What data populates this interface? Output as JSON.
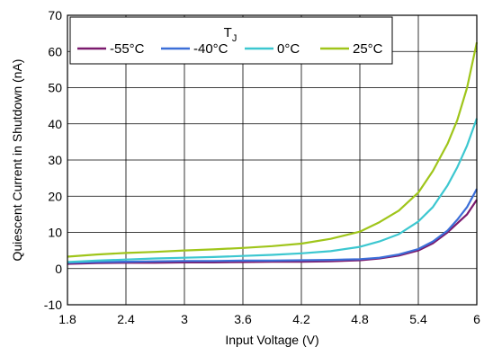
{
  "chart_data": {
    "type": "line",
    "title": "",
    "xlabel": "Input Voltage (V)",
    "ylabel": "Quiescent Current in Shutdown (nA)",
    "xlim": [
      1.8,
      6
    ],
    "ylim": [
      -10,
      70
    ],
    "xticks": [
      1.8,
      2.4,
      3,
      3.6,
      4.2,
      4.8,
      5.4,
      6
    ],
    "xtick_labels": [
      "1.8",
      "2.4",
      "3",
      "3.6",
      "4.2",
      "4.8",
      "5.4",
      "6"
    ],
    "yticks": [
      -10,
      0,
      10,
      20,
      30,
      40,
      50,
      60,
      70
    ],
    "ytick_labels": [
      "-10",
      "0",
      "10",
      "20",
      "30",
      "40",
      "50",
      "60",
      "70"
    ],
    "grid": true,
    "legend": {
      "placement": "top-left",
      "title_main": "T",
      "title_sub": "J"
    },
    "series": [
      {
        "name": "-55°C",
        "color": "#7b1a6e",
        "points": [
          [
            1.8,
            1.3
          ],
          [
            2.1,
            1.5
          ],
          [
            2.4,
            1.6
          ],
          [
            2.7,
            1.6
          ],
          [
            3.0,
            1.7
          ],
          [
            3.3,
            1.7
          ],
          [
            3.6,
            1.8
          ],
          [
            3.9,
            1.9
          ],
          [
            4.2,
            1.9
          ],
          [
            4.5,
            2.0
          ],
          [
            4.8,
            2.3
          ],
          [
            5.0,
            2.8
          ],
          [
            5.2,
            3.6
          ],
          [
            5.4,
            5.0
          ],
          [
            5.55,
            7.0
          ],
          [
            5.7,
            10.0
          ],
          [
            5.8,
            12.5
          ],
          [
            5.9,
            15.0
          ],
          [
            6.0,
            19.0
          ]
        ]
      },
      {
        "name": "-40°C",
        "color": "#3c6fd8",
        "points": [
          [
            1.8,
            1.6
          ],
          [
            2.1,
            1.8
          ],
          [
            2.4,
            1.9
          ],
          [
            2.7,
            2.0
          ],
          [
            3.0,
            2.1
          ],
          [
            3.3,
            2.1
          ],
          [
            3.6,
            2.2
          ],
          [
            3.9,
            2.2
          ],
          [
            4.2,
            2.3
          ],
          [
            4.5,
            2.4
          ],
          [
            4.8,
            2.6
          ],
          [
            5.0,
            3.0
          ],
          [
            5.2,
            3.9
          ],
          [
            5.4,
            5.4
          ],
          [
            5.55,
            7.5
          ],
          [
            5.7,
            10.5
          ],
          [
            5.8,
            13.5
          ],
          [
            5.9,
            17.0
          ],
          [
            6.0,
            22.0
          ]
        ]
      },
      {
        "name": "0°C",
        "color": "#3cc7d0",
        "points": [
          [
            1.8,
            1.8
          ],
          [
            2.1,
            2.2
          ],
          [
            2.4,
            2.5
          ],
          [
            2.7,
            2.8
          ],
          [
            3.0,
            3.0
          ],
          [
            3.3,
            3.2
          ],
          [
            3.6,
            3.5
          ],
          [
            3.9,
            3.8
          ],
          [
            4.2,
            4.2
          ],
          [
            4.5,
            4.8
          ],
          [
            4.8,
            6.0
          ],
          [
            5.0,
            7.5
          ],
          [
            5.2,
            9.5
          ],
          [
            5.4,
            13.0
          ],
          [
            5.55,
            17.0
          ],
          [
            5.7,
            23.0
          ],
          [
            5.8,
            28.0
          ],
          [
            5.9,
            34.0
          ],
          [
            6.0,
            41.5
          ]
        ]
      },
      {
        "name": "25°C",
        "color": "#9fc51a",
        "points": [
          [
            1.8,
            3.3
          ],
          [
            2.1,
            3.9
          ],
          [
            2.4,
            4.3
          ],
          [
            2.7,
            4.6
          ],
          [
            3.0,
            5.0
          ],
          [
            3.3,
            5.3
          ],
          [
            3.6,
            5.7
          ],
          [
            3.9,
            6.2
          ],
          [
            4.2,
            6.9
          ],
          [
            4.5,
            8.2
          ],
          [
            4.8,
            10.2
          ],
          [
            5.0,
            12.8
          ],
          [
            5.2,
            16.0
          ],
          [
            5.4,
            21.0
          ],
          [
            5.55,
            27.0
          ],
          [
            5.7,
            34.5
          ],
          [
            5.8,
            41.0
          ],
          [
            5.9,
            50.0
          ],
          [
            6.0,
            62.5
          ]
        ]
      }
    ]
  }
}
